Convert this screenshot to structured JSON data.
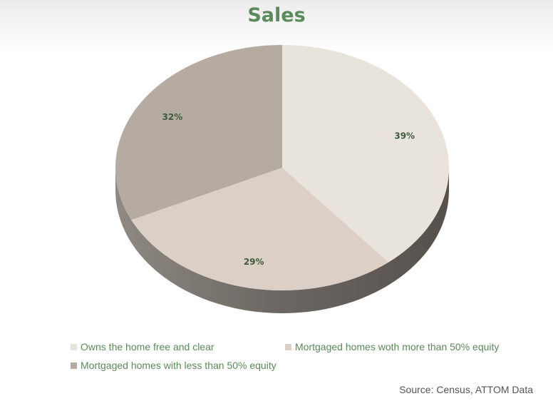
{
  "chart_data": {
    "type": "pie",
    "title": "Sales",
    "slices": [
      {
        "label": "Owns the home free and clear",
        "value": 39,
        "value_label": "39%",
        "color": "#e8e4dc"
      },
      {
        "label": "Mortgaged homes woth more than 50% equity",
        "value": 29,
        "value_label": "29%",
        "color": "#dcd0c6"
      },
      {
        "label": "Mortgaged homes with less than 50% equity",
        "value": 32,
        "value_label": "32%",
        "color": "#b5aba0"
      }
    ],
    "legend_position": "bottom",
    "style": "3d"
  },
  "colors": {
    "title": "#5b8a5b",
    "legend_text": "#5b8a5b",
    "data_label": "#3e5a3e",
    "side_dark": "#5a5550",
    "side_light": "#8f8983"
  },
  "source": "Source: Census, ATTOM Data"
}
